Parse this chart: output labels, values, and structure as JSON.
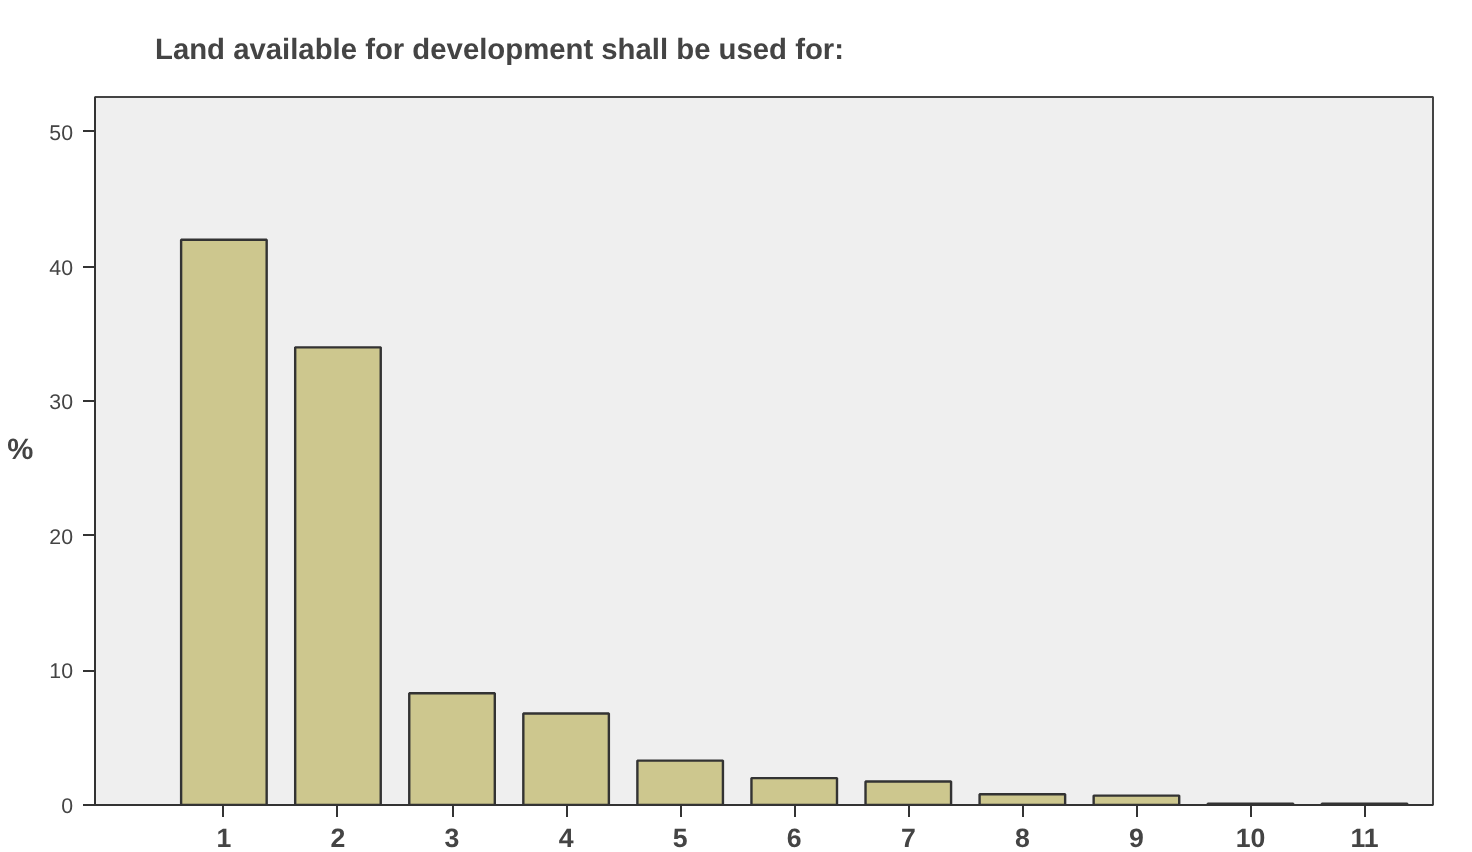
{
  "chart_data": {
    "type": "bar",
    "title": "Land available for development shall be used for:",
    "ylabel": "%",
    "categories": [
      "1",
      "2",
      "3",
      "4",
      "5",
      "6",
      "7",
      "8",
      "9",
      "10",
      "11"
    ],
    "values": [
      42.0,
      34.0,
      8.3,
      6.8,
      3.3,
      2.0,
      1.75,
      0.8,
      0.7,
      0.1,
      0.1
    ],
    "color": "#cdc78e",
    "ylim": [
      0,
      52.6
    ],
    "yticks": [
      0,
      10,
      20,
      30,
      40,
      50
    ],
    "grid": false
  }
}
